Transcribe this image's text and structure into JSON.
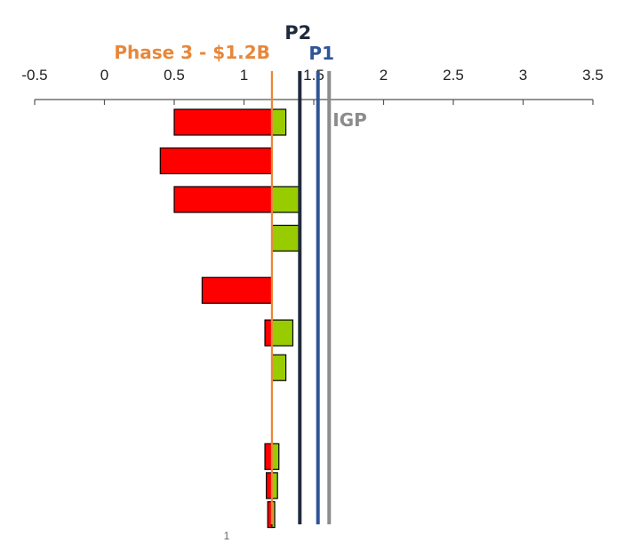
{
  "chart_data": {
    "type": "bar",
    "subtype": "tornado",
    "title": "",
    "xlabel": "",
    "ylabel": "",
    "xlim": [
      -0.5,
      3.5
    ],
    "x_ticks": [
      -0.5,
      0,
      0.5,
      1,
      1.5,
      2,
      2.5,
      3,
      3.5
    ],
    "x_tick_labels": [
      "-0.5",
      "0",
      "0.5",
      "1",
      "1.5",
      "2",
      "2.5",
      "3",
      "3.5"
    ],
    "axis_position": "top",
    "grid": false,
    "baseline": 1.2,
    "colors": {
      "low": "#ff0000",
      "high": "#99cc00",
      "outline": "#000000"
    },
    "bars": [
      {
        "low": 0.5,
        "high": 1.3
      },
      {
        "low": 0.4,
        "high": 1.2
      },
      {
        "low": 0.5,
        "high": 1.4
      },
      {
        "low": 1.2,
        "high": 1.4
      },
      {
        "low": 0.7,
        "high": 1.2
      },
      {
        "low": 1.15,
        "high": 1.35
      },
      {
        "low": 1.2,
        "high": 1.3
      },
      {
        "low": 1.15,
        "high": 1.25
      },
      {
        "low": 1.16,
        "high": 1.24
      },
      {
        "low": 1.17,
        "high": 1.22
      }
    ],
    "bar_rows": [
      0,
      1,
      2,
      3,
      4.35,
      5.45,
      6.35,
      8.65,
      9.4,
      10.15
    ],
    "reference_lines": [
      {
        "name": "Phase 3 - $1.2B",
        "x": 1.2,
        "color": "#e8873a"
      },
      {
        "name": "P2",
        "x": 1.4,
        "color": "#1f2a3c"
      },
      {
        "name": "P1",
        "x": 1.53,
        "color": "#2f5597"
      },
      {
        "name": "IGP",
        "x": 1.61,
        "color": "#8c8c8c"
      }
    ]
  },
  "footer": {
    "page_number": "1"
  }
}
